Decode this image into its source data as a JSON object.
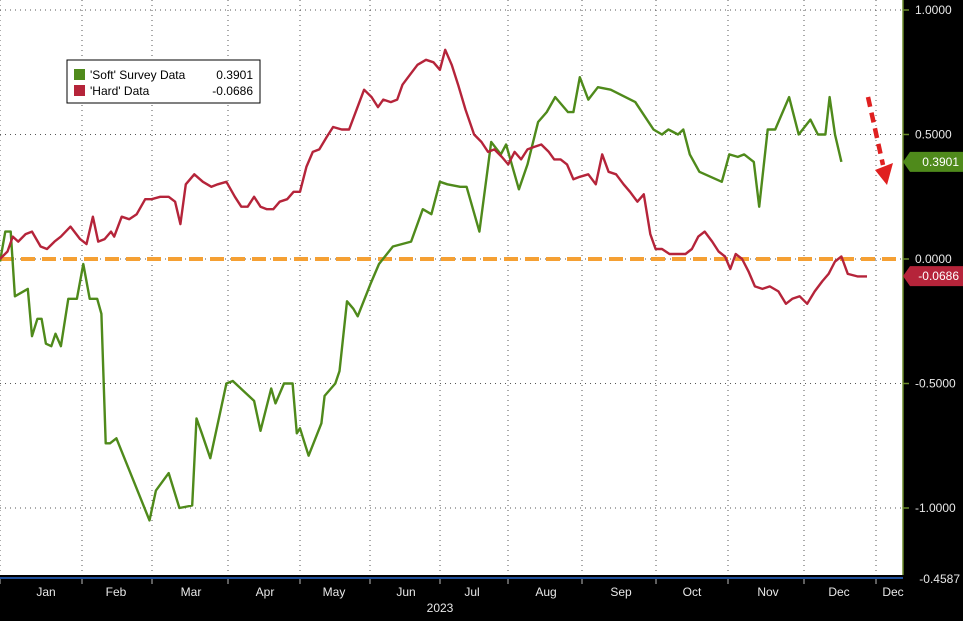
{
  "chart_data": {
    "type": "line",
    "x_labels": [
      "Jan",
      "Feb",
      "Mar",
      "Apr",
      "May",
      "Jun",
      "Jul",
      "Aug",
      "Sep",
      "Oct",
      "Nov",
      "Dec",
      "Dec"
    ],
    "year_label": "2023",
    "y_ticks": [
      "1.0000",
      "0.5000",
      "0.0000",
      "-0.5000",
      "-1.0000"
    ],
    "ylim": [
      -1.25,
      1.05
    ],
    "grid": true,
    "reference_line": {
      "value": 0.0,
      "color": "#f5a033",
      "style": "dashed"
    },
    "annotation": {
      "type": "arrow",
      "color": "#e02020",
      "direction": "down"
    },
    "bottom_cut_label": "-0.4587",
    "legend": {
      "placement": "top-left",
      "entries": [
        {
          "name": "'Soft' Survey Data",
          "value": "0.3901",
          "color": "#4f8a1b"
        },
        {
          "name": "'Hard' Data",
          "value": "-0.0686",
          "color": "#b5243a"
        }
      ]
    },
    "series": [
      {
        "name": "'Soft' Survey Data",
        "color": "#4f8a1b",
        "last_value": "0.3901",
        "points": [
          [
            0.0,
            -0.01
          ],
          [
            0.25,
            0.11
          ],
          [
            0.5,
            0.11
          ],
          [
            0.7,
            -0.15
          ],
          [
            1.3,
            -0.12
          ],
          [
            1.5,
            -0.31
          ],
          [
            1.75,
            -0.24
          ],
          [
            1.95,
            -0.24
          ],
          [
            2.15,
            -0.34
          ],
          [
            2.4,
            -0.35
          ],
          [
            2.6,
            -0.3
          ],
          [
            2.85,
            -0.35
          ],
          [
            3.2,
            -0.16
          ],
          [
            3.6,
            -0.16
          ],
          [
            3.9,
            -0.02
          ],
          [
            4.2,
            -0.16
          ],
          [
            4.55,
            -0.16
          ],
          [
            4.75,
            -0.22
          ],
          [
            4.95,
            -0.74
          ],
          [
            5.15,
            -0.74
          ],
          [
            5.45,
            -0.72
          ],
          [
            7.0,
            -1.05
          ],
          [
            7.3,
            -0.93
          ],
          [
            7.9,
            -0.86
          ],
          [
            8.4,
            -1.0
          ],
          [
            9.0,
            -0.99
          ],
          [
            9.2,
            -0.64
          ],
          [
            9.45,
            -0.7
          ],
          [
            9.85,
            -0.8
          ],
          [
            10.6,
            -0.5
          ],
          [
            10.9,
            -0.49
          ],
          [
            11.9,
            -0.57
          ],
          [
            12.2,
            -0.69
          ],
          [
            12.7,
            -0.52
          ],
          [
            12.9,
            -0.58
          ],
          [
            13.3,
            -0.5
          ],
          [
            13.7,
            -0.5
          ],
          [
            13.9,
            -0.7
          ],
          [
            14.05,
            -0.68
          ],
          [
            14.45,
            -0.79
          ],
          [
            15.05,
            -0.66
          ],
          [
            15.2,
            -0.55
          ],
          [
            15.7,
            -0.5
          ],
          [
            15.9,
            -0.45
          ],
          [
            16.25,
            -0.17
          ],
          [
            16.55,
            -0.2
          ],
          [
            16.75,
            -0.23
          ],
          [
            17.35,
            -0.1
          ],
          [
            17.75,
            -0.02
          ],
          [
            18.4,
            0.05
          ],
          [
            19.25,
            0.07
          ],
          [
            19.8,
            0.2
          ],
          [
            20.2,
            0.18
          ],
          [
            20.6,
            0.31
          ],
          [
            20.95,
            0.3
          ],
          [
            21.55,
            0.29
          ],
          [
            21.85,
            0.29
          ],
          [
            22.45,
            0.11
          ],
          [
            23.0,
            0.47
          ],
          [
            23.45,
            0.42
          ],
          [
            23.7,
            0.46
          ],
          [
            24.3,
            0.28
          ],
          [
            24.7,
            0.38
          ],
          [
            25.2,
            0.55
          ],
          [
            25.6,
            0.59
          ],
          [
            26.0,
            0.65
          ],
          [
            26.6,
            0.59
          ],
          [
            26.85,
            0.59
          ],
          [
            27.15,
            0.73
          ],
          [
            27.55,
            0.64
          ],
          [
            28.0,
            0.69
          ],
          [
            28.6,
            0.68
          ],
          [
            29.75,
            0.63
          ],
          [
            30.6,
            0.52
          ],
          [
            31.0,
            0.5
          ],
          [
            31.3,
            0.52
          ],
          [
            31.75,
            0.5
          ],
          [
            32.0,
            0.52
          ],
          [
            32.3,
            0.42
          ],
          [
            32.75,
            0.35
          ],
          [
            33.8,
            0.31
          ],
          [
            34.15,
            0.42
          ],
          [
            34.55,
            0.41
          ],
          [
            34.85,
            0.42
          ],
          [
            35.3,
            0.39
          ],
          [
            35.55,
            0.21
          ],
          [
            35.95,
            0.52
          ],
          [
            36.3,
            0.52
          ],
          [
            36.95,
            0.65
          ],
          [
            37.4,
            0.5
          ],
          [
            37.95,
            0.56
          ],
          [
            38.3,
            0.5
          ],
          [
            38.65,
            0.5
          ],
          [
            38.85,
            0.65
          ],
          [
            39.1,
            0.5
          ],
          [
            39.4,
            0.39
          ]
        ]
      },
      {
        "name": "'Hard' Data",
        "color": "#b5243a",
        "last_value": "-0.0686",
        "points": [
          [
            0.0,
            0.0
          ],
          [
            0.35,
            0.03
          ],
          [
            0.6,
            0.09
          ],
          [
            0.85,
            0.07
          ],
          [
            1.2,
            0.1
          ],
          [
            1.5,
            0.11
          ],
          [
            1.9,
            0.05
          ],
          [
            2.2,
            0.04
          ],
          [
            2.55,
            0.07
          ],
          [
            2.85,
            0.09
          ],
          [
            3.3,
            0.13
          ],
          [
            3.75,
            0.08
          ],
          [
            4.05,
            0.06
          ],
          [
            4.35,
            0.17
          ],
          [
            4.6,
            0.07
          ],
          [
            4.9,
            0.08
          ],
          [
            5.2,
            0.11
          ],
          [
            5.35,
            0.09
          ],
          [
            5.7,
            0.17
          ],
          [
            6.05,
            0.16
          ],
          [
            6.4,
            0.18
          ],
          [
            6.8,
            0.24
          ],
          [
            7.1,
            0.24
          ],
          [
            7.5,
            0.25
          ],
          [
            7.9,
            0.25
          ],
          [
            8.2,
            0.23
          ],
          [
            8.45,
            0.14
          ],
          [
            8.7,
            0.3
          ],
          [
            9.1,
            0.34
          ],
          [
            9.5,
            0.31
          ],
          [
            9.9,
            0.29
          ],
          [
            10.2,
            0.3
          ],
          [
            10.6,
            0.31
          ],
          [
            11.0,
            0.25
          ],
          [
            11.3,
            0.21
          ],
          [
            11.6,
            0.21
          ],
          [
            11.9,
            0.25
          ],
          [
            12.2,
            0.21
          ],
          [
            12.5,
            0.2
          ],
          [
            12.8,
            0.2
          ],
          [
            13.1,
            0.23
          ],
          [
            13.45,
            0.24
          ],
          [
            13.75,
            0.27
          ],
          [
            14.05,
            0.27
          ],
          [
            14.35,
            0.37
          ],
          [
            14.65,
            0.43
          ],
          [
            14.95,
            0.44
          ],
          [
            15.3,
            0.49
          ],
          [
            15.6,
            0.53
          ],
          [
            16.0,
            0.52
          ],
          [
            16.35,
            0.52
          ],
          [
            16.7,
            0.6
          ],
          [
            17.05,
            0.68
          ],
          [
            17.4,
            0.65
          ],
          [
            17.7,
            0.61
          ],
          [
            17.95,
            0.64
          ],
          [
            18.3,
            0.63
          ],
          [
            18.6,
            0.64
          ],
          [
            18.85,
            0.7
          ],
          [
            19.2,
            0.74
          ],
          [
            19.55,
            0.78
          ],
          [
            19.95,
            0.8
          ],
          [
            20.3,
            0.79
          ],
          [
            20.6,
            0.76
          ],
          [
            20.85,
            0.84
          ],
          [
            21.15,
            0.78
          ],
          [
            21.45,
            0.7
          ],
          [
            21.8,
            0.6
          ],
          [
            22.2,
            0.5
          ],
          [
            22.55,
            0.47
          ],
          [
            22.85,
            0.43
          ],
          [
            23.15,
            0.44
          ],
          [
            23.5,
            0.41
          ],
          [
            23.8,
            0.38
          ],
          [
            24.1,
            0.43
          ],
          [
            24.4,
            0.4
          ],
          [
            24.7,
            0.44
          ],
          [
            25.0,
            0.45
          ],
          [
            25.35,
            0.46
          ],
          [
            25.7,
            0.43
          ],
          [
            25.95,
            0.4
          ],
          [
            26.25,
            0.4
          ],
          [
            26.55,
            0.38
          ],
          [
            26.85,
            0.32
          ],
          [
            27.15,
            0.33
          ],
          [
            27.55,
            0.34
          ],
          [
            27.9,
            0.3
          ],
          [
            28.2,
            0.42
          ],
          [
            28.5,
            0.35
          ],
          [
            28.85,
            0.34
          ],
          [
            29.2,
            0.3
          ],
          [
            29.5,
            0.27
          ],
          [
            29.85,
            0.23
          ],
          [
            30.15,
            0.26
          ],
          [
            30.45,
            0.1
          ],
          [
            30.7,
            0.04
          ],
          [
            31.0,
            0.04
          ],
          [
            31.35,
            0.02
          ],
          [
            31.75,
            0.02
          ],
          [
            32.1,
            0.02
          ],
          [
            32.4,
            0.04
          ],
          [
            32.7,
            0.09
          ],
          [
            33.0,
            0.11
          ],
          [
            33.35,
            0.07
          ],
          [
            33.65,
            0.03
          ],
          [
            33.95,
            0.01
          ],
          [
            34.2,
            -0.04
          ],
          [
            34.45,
            0.02
          ],
          [
            34.75,
            0.0
          ],
          [
            35.05,
            -0.05
          ],
          [
            35.35,
            -0.11
          ],
          [
            35.7,
            -0.12
          ],
          [
            36.05,
            -0.11
          ],
          [
            36.45,
            -0.13
          ],
          [
            36.8,
            -0.18
          ],
          [
            37.1,
            -0.16
          ],
          [
            37.45,
            -0.15
          ],
          [
            37.8,
            -0.18
          ],
          [
            38.15,
            -0.13
          ],
          [
            38.5,
            -0.09
          ],
          [
            38.8,
            -0.06
          ],
          [
            39.1,
            -0.01
          ],
          [
            39.4,
            0.01
          ],
          [
            39.7,
            -0.06
          ],
          [
            40.15,
            -0.07
          ],
          [
            40.6,
            -0.07
          ]
        ]
      }
    ]
  }
}
